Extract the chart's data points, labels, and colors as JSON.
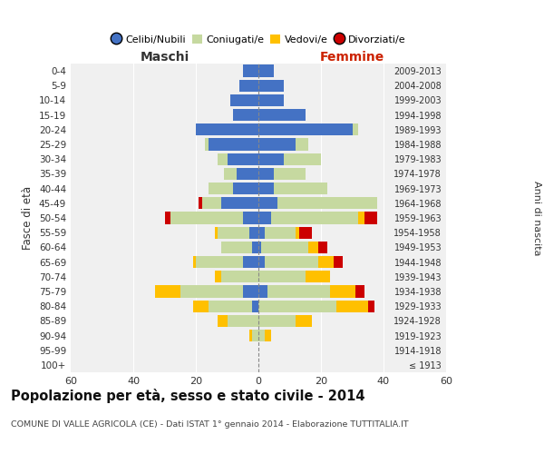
{
  "age_groups": [
    "100+",
    "95-99",
    "90-94",
    "85-89",
    "80-84",
    "75-79",
    "70-74",
    "65-69",
    "60-64",
    "55-59",
    "50-54",
    "45-49",
    "40-44",
    "35-39",
    "30-34",
    "25-29",
    "20-24",
    "15-19",
    "10-14",
    "5-9",
    "0-4"
  ],
  "birth_years": [
    "≤ 1913",
    "1914-1918",
    "1919-1923",
    "1924-1928",
    "1929-1933",
    "1934-1938",
    "1939-1943",
    "1944-1948",
    "1949-1953",
    "1954-1958",
    "1959-1963",
    "1964-1968",
    "1969-1973",
    "1974-1978",
    "1979-1983",
    "1984-1988",
    "1989-1993",
    "1994-1998",
    "1999-2003",
    "2004-2008",
    "2009-2013"
  ],
  "maschi": {
    "celibi": [
      0,
      0,
      0,
      0,
      2,
      5,
      0,
      5,
      2,
      3,
      5,
      12,
      8,
      7,
      10,
      16,
      20,
      8,
      9,
      6,
      5
    ],
    "coniugati": [
      0,
      0,
      2,
      10,
      14,
      20,
      12,
      15,
      10,
      10,
      23,
      6,
      8,
      4,
      3,
      1,
      0,
      0,
      0,
      0,
      0
    ],
    "vedovi": [
      0,
      0,
      1,
      3,
      5,
      8,
      2,
      1,
      0,
      1,
      0,
      0,
      0,
      0,
      0,
      0,
      0,
      0,
      0,
      0,
      0
    ],
    "divorziati": [
      0,
      0,
      0,
      0,
      0,
      0,
      0,
      0,
      0,
      0,
      2,
      1,
      0,
      0,
      0,
      0,
      0,
      0,
      0,
      0,
      0
    ]
  },
  "femmine": {
    "nubili": [
      0,
      0,
      0,
      0,
      0,
      3,
      0,
      2,
      1,
      2,
      4,
      6,
      5,
      5,
      8,
      12,
      30,
      15,
      8,
      8,
      5
    ],
    "coniugate": [
      0,
      0,
      2,
      12,
      25,
      20,
      15,
      17,
      15,
      10,
      28,
      32,
      17,
      10,
      12,
      4,
      2,
      0,
      0,
      0,
      0
    ],
    "vedove": [
      0,
      0,
      2,
      5,
      10,
      8,
      8,
      5,
      3,
      1,
      2,
      0,
      0,
      0,
      0,
      0,
      0,
      0,
      0,
      0,
      0
    ],
    "divorziate": [
      0,
      0,
      0,
      0,
      2,
      3,
      0,
      3,
      3,
      4,
      4,
      0,
      0,
      0,
      0,
      0,
      0,
      0,
      0,
      0,
      0
    ]
  },
  "colors": {
    "celibi_nubili": "#4472C4",
    "coniugati": "#C6D9A0",
    "vedovi": "#FFC000",
    "divorziati": "#CC0000"
  },
  "title": "Popolazione per età, sesso e stato civile - 2014",
  "subtitle": "COMUNE DI VALLE AGRICOLA (CE) - Dati ISTAT 1° gennaio 2014 - Elaborazione TUTTITALIA.IT",
  "xlabel_left": "Maschi",
  "xlabel_right": "Femmine",
  "ylabel": "Fasce di età",
  "ylabel_right": "Anni di nascita",
  "xlim": 60,
  "background_color": "#ffffff",
  "axes_background": "#f0f0f0"
}
